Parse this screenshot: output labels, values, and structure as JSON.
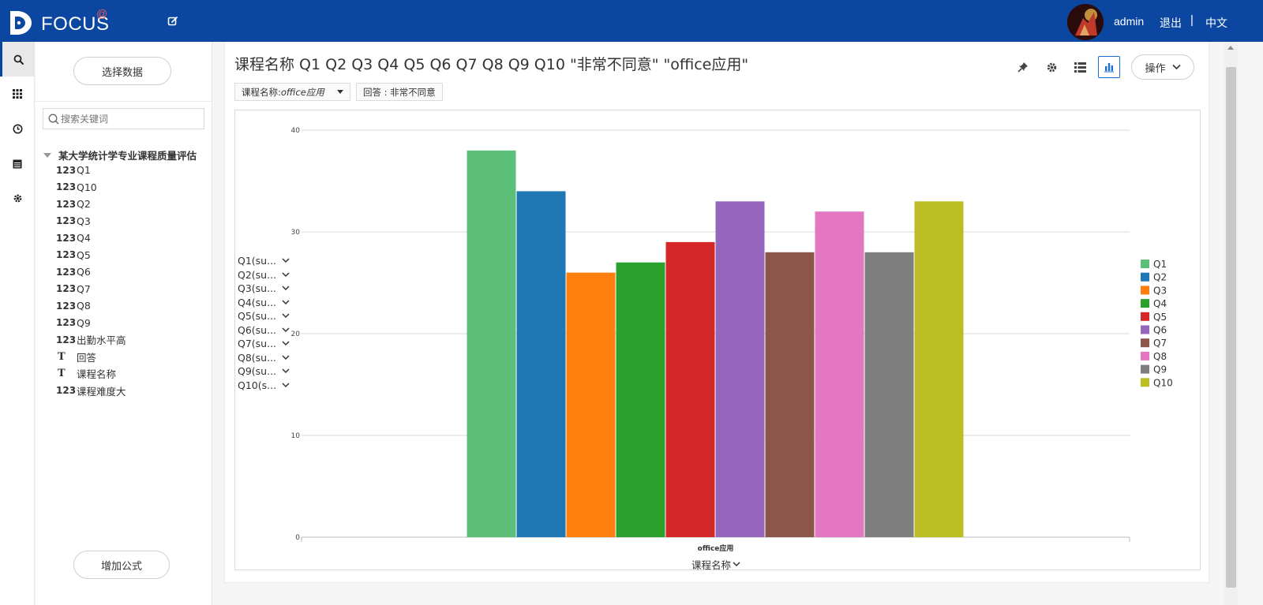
{
  "app": {
    "logo_text": "FOCUS",
    "logo_mark": "@"
  },
  "header": {
    "user": "admin",
    "logout": "退出",
    "separator": "|",
    "lang": "中文"
  },
  "rail": {
    "items": [
      "search-icon",
      "grid-icon",
      "clock-icon",
      "calendar-icon",
      "gear-icon"
    ]
  },
  "sidebar": {
    "select_data": "选择数据",
    "search_placeholder": "搜索关键词",
    "dataset": "某大学统计学专业课程质量评估",
    "fields": [
      {
        "type": "123",
        "name": "Q1"
      },
      {
        "type": "123",
        "name": "Q10"
      },
      {
        "type": "123",
        "name": "Q2"
      },
      {
        "type": "123",
        "name": "Q3"
      },
      {
        "type": "123",
        "name": "Q4"
      },
      {
        "type": "123",
        "name": "Q5"
      },
      {
        "type": "123",
        "name": "Q6"
      },
      {
        "type": "123",
        "name": "Q7"
      },
      {
        "type": "123",
        "name": "Q8"
      },
      {
        "type": "123",
        "name": "Q9"
      },
      {
        "type": "123",
        "name": "出勤水平高"
      },
      {
        "type": "T",
        "name": "回答"
      },
      {
        "type": "T",
        "name": "课程名称"
      },
      {
        "type": "123",
        "name": "课程难度大"
      }
    ],
    "add_formula": "增加公式"
  },
  "main": {
    "title": "课程名称 Q1 Q2 Q3 Q4 Q5 Q6 Q7 Q8 Q9 Q10 \"非常不同意\" \"office应用\"",
    "ops_label": "操作",
    "filters": [
      {
        "label": "课程名称: ",
        "value": "office应用"
      },
      {
        "label": "回答 : 非常不同意",
        "value": ""
      }
    ],
    "measures": [
      "Q1(su...",
      "Q2(su...",
      "Q3(su...",
      "Q4(su...",
      "Q5(su...",
      "Q6(su...",
      "Q7(su...",
      "Q8(su...",
      "Q9(su...",
      "Q10(s..."
    ],
    "x_axis_title": "课程名称"
  },
  "chart_data": {
    "type": "bar",
    "categories": [
      "office应用"
    ],
    "series": [
      {
        "name": "Q1",
        "values": [
          38
        ],
        "color": "#5bbf7a"
      },
      {
        "name": "Q2",
        "values": [
          34
        ],
        "color": "#1f77b4"
      },
      {
        "name": "Q3",
        "values": [
          26
        ],
        "color": "#ff7f0e"
      },
      {
        "name": "Q4",
        "values": [
          27
        ],
        "color": "#2ca02c"
      },
      {
        "name": "Q5",
        "values": [
          29
        ],
        "color": "#d62728"
      },
      {
        "name": "Q6",
        "values": [
          33
        ],
        "color": "#9467bd"
      },
      {
        "name": "Q7",
        "values": [
          28
        ],
        "color": "#8c564b"
      },
      {
        "name": "Q8",
        "values": [
          32
        ],
        "color": "#e377c2"
      },
      {
        "name": "Q9",
        "values": [
          28
        ],
        "color": "#7f7f7f"
      },
      {
        "name": "Q10",
        "values": [
          33
        ],
        "color": "#bcbd22"
      }
    ],
    "ylim": [
      0,
      40
    ],
    "yticks": [
      "0",
      "10",
      "20",
      "30",
      "40"
    ],
    "grid": true,
    "legend": "right",
    "xlabel": "课程名称",
    "ylabel": ""
  }
}
